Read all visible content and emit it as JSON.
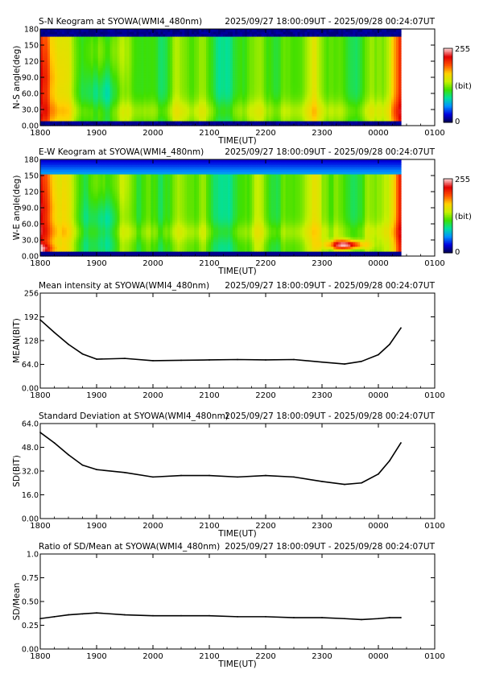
{
  "chart_data": [
    {
      "type": "heatmap",
      "title": "S-N Keogram at SYOWA(WMI4_480nm)",
      "time_range": "2025/09/27 18:00:09UT - 2025/09/28 00:24:07UT",
      "xlabel": "TIME(UT)",
      "ylabel": "N-S angle(deg)",
      "x_ticks": [
        "1800",
        "1900",
        "2000",
        "2100",
        "2200",
        "2300",
        "0000",
        "0100"
      ],
      "y_ticks": [
        "0.00",
        "30.0",
        "60.0",
        "90.0",
        "120",
        "150",
        "180"
      ],
      "ylim": [
        0,
        180
      ],
      "data_end": "00:24",
      "colorbar": {
        "min_label": "0",
        "max_label": "255",
        "unit_label": "(bit)",
        "colors": [
          "#00004a",
          "#0000e0",
          "#0090ff",
          "#00e0a0",
          "#40e000",
          "#c8f000",
          "#ffd000",
          "#ff5000",
          "#e00000",
          "#ffd0d0"
        ]
      }
    },
    {
      "type": "heatmap",
      "title": "E-W Keogram at SYOWA(WMI4_480nm)",
      "time_range": "2025/09/27 18:00:09UT - 2025/09/28 00:24:07UT",
      "xlabel": "TIME(UT)",
      "ylabel": "W-E angle(deg)",
      "x_ticks": [
        "1800",
        "1900",
        "2000",
        "2100",
        "2200",
        "2300",
        "0000",
        "0100"
      ],
      "y_ticks": [
        "0.00",
        "30.0",
        "60.0",
        "90.0",
        "120",
        "150",
        "180"
      ],
      "ylim": [
        0,
        180
      ],
      "data_end": "00:24",
      "colorbar": {
        "min_label": "0",
        "max_label": "255",
        "unit_label": "(bit)",
        "colors": [
          "#00004a",
          "#0000e0",
          "#0090ff",
          "#00e0a0",
          "#40e000",
          "#c8f000",
          "#ffd000",
          "#ff5000",
          "#e00000",
          "#ffd0d0"
        ]
      }
    },
    {
      "type": "line",
      "title": "Mean intensity at SYOWA(WMI4_480nm)",
      "time_range": "2025/09/27 18:00:09UT - 2025/09/28 00:24:07UT",
      "xlabel": "",
      "ylabel": "MEAN(BIT)",
      "x_ticks": [
        "1800",
        "1900",
        "2000",
        "2100",
        "2200",
        "2300",
        "0000",
        "0100"
      ],
      "y_ticks": [
        "0.00",
        "64.0",
        "128",
        "192",
        "256"
      ],
      "ylim": [
        0,
        256
      ],
      "xlim_hours": [
        18,
        25
      ],
      "x_hours": [
        18.0,
        18.25,
        18.5,
        18.75,
        19.0,
        19.5,
        20.0,
        20.5,
        21.0,
        21.5,
        22.0,
        22.5,
        23.0,
        23.4,
        23.7,
        24.0,
        24.2,
        24.4
      ],
      "values": [
        184,
        150,
        118,
        92,
        78,
        80,
        74,
        75,
        76,
        77,
        76,
        77,
        70,
        65,
        72,
        90,
        118,
        162
      ]
    },
    {
      "type": "line",
      "title": "Standard Deviation at SYOWA(WMI4_480nm)",
      "time_range": "2025/09/27 18:00:09UT - 2025/09/28 00:24:07UT",
      "xlabel": "TIME(UT)",
      "ylabel": "SD(BIT)",
      "x_ticks": [
        "1800",
        "1900",
        "2000",
        "2100",
        "2200",
        "2300",
        "0000",
        "0100"
      ],
      "y_ticks": [
        "0.00",
        "16.0",
        "32.0",
        "48.0",
        "64.0"
      ],
      "ylim": [
        0,
        64
      ],
      "xlim_hours": [
        18,
        25
      ],
      "x_hours": [
        18.0,
        18.25,
        18.5,
        18.75,
        19.0,
        19.5,
        20.0,
        20.5,
        21.0,
        21.5,
        22.0,
        22.5,
        23.0,
        23.4,
        23.7,
        24.0,
        24.2,
        24.4
      ],
      "values": [
        58,
        51,
        43,
        36,
        33,
        31,
        28,
        29,
        29,
        28,
        29,
        28,
        25,
        23,
        24,
        30,
        39,
        51
      ]
    },
    {
      "type": "line",
      "title": "Ratio of SD/Mean at SYOWA(WMI4_480nm)",
      "time_range": "2025/09/27 18:00:09UT - 2025/09/28 00:24:07UT",
      "xlabel": "TIME(UT)",
      "ylabel": "SD/Mean",
      "x_ticks": [
        "1800",
        "1900",
        "2000",
        "2100",
        "2200",
        "2300",
        "0000",
        "0100"
      ],
      "y_ticks": [
        "0.00",
        "0.25",
        "0.50",
        "0.75",
        "1.0"
      ],
      "ylim": [
        0,
        1
      ],
      "xlim_hours": [
        18,
        25
      ],
      "x_hours": [
        18.0,
        18.25,
        18.5,
        18.75,
        19.0,
        19.5,
        20.0,
        20.5,
        21.0,
        21.5,
        22.0,
        22.5,
        23.0,
        23.4,
        23.7,
        24.0,
        24.2,
        24.4
      ],
      "values": [
        0.32,
        0.34,
        0.36,
        0.37,
        0.38,
        0.36,
        0.35,
        0.35,
        0.35,
        0.34,
        0.34,
        0.33,
        0.33,
        0.32,
        0.31,
        0.32,
        0.33,
        0.33
      ]
    }
  ]
}
